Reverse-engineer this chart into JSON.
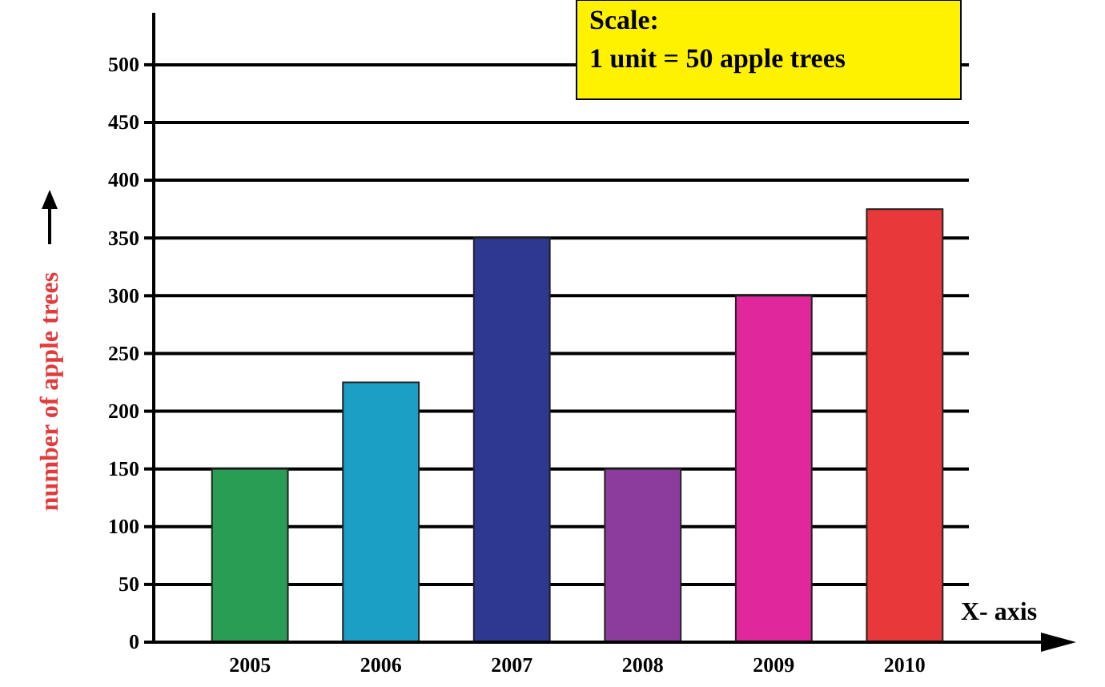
{
  "chart_data": {
    "type": "bar",
    "xlabel": "X- axis",
    "ylabel": "number of apple trees",
    "categories": [
      "2005",
      "2006",
      "2007",
      "2008",
      "2009",
      "2010"
    ],
    "values": [
      150,
      225,
      350,
      150,
      300,
      375
    ],
    "colors": [
      "#2a9d55",
      "#1b9fc4",
      "#2e3890",
      "#8c3c9c",
      "#e0279c",
      "#e8383a"
    ],
    "ylim": [
      0,
      545
    ],
    "yticks": [
      0,
      50,
      100,
      150,
      200,
      250,
      300,
      350,
      400,
      450,
      500
    ],
    "grid": "y",
    "annotations": [
      "Scale:",
      "1 unit = 50 apple trees"
    ]
  }
}
